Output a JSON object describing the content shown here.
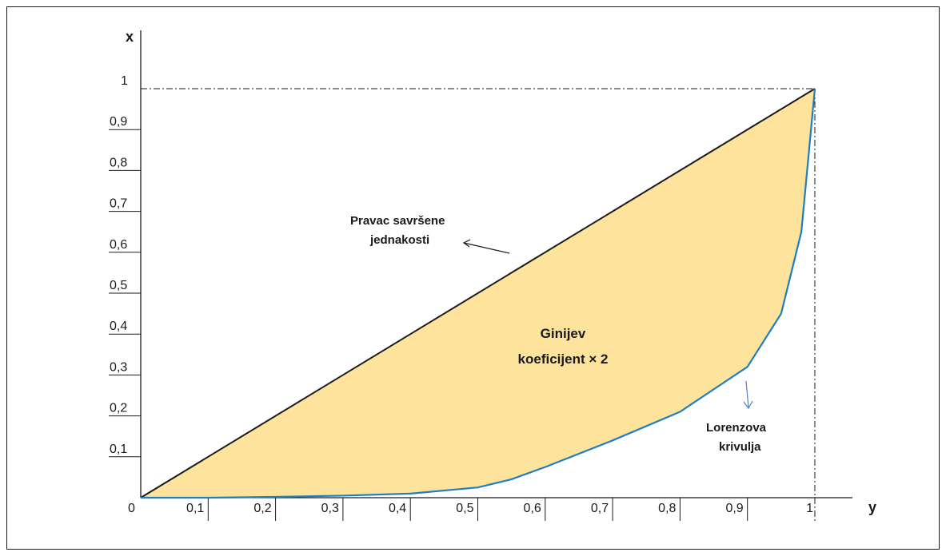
{
  "axes": {
    "x_axis_name": "y",
    "y_axis_name": "x",
    "origin_label": "0",
    "x_ticks": [
      "0,1",
      "0,2",
      "0,3",
      "0,4",
      "0,5",
      "0,6",
      "0,7",
      "0,8",
      "0,9",
      "1"
    ],
    "y_ticks": [
      "0,1",
      "0,2",
      "0,3",
      "0,4",
      "0,5",
      "0,6",
      "0,7",
      "0,8",
      "0,9",
      "1"
    ]
  },
  "annotations": {
    "equality_line_line1": "Pravac savršene",
    "equality_line_line2": "jednakosti",
    "gini_line1": "Ginijev",
    "gini_line2": "koeficijent × 2",
    "lorenz_line1": "Lorenzova",
    "lorenz_line2": "krivulja"
  },
  "colors": {
    "fill": "#fde39c",
    "equality_line": "#1a1a1a",
    "lorenz_curve": "#1f7ec4",
    "axis": "#1a1a1a"
  },
  "chart_data": {
    "type": "line",
    "xlim": [
      0,
      1
    ],
    "ylim": [
      0,
      1
    ],
    "series": [
      {
        "x": [
          0,
          1
        ],
        "y": [
          0,
          1
        ]
      },
      {
        "x": [
          0,
          0.1,
          0.2,
          0.3,
          0.4,
          0.5,
          0.55,
          0.6,
          0.7,
          0.8,
          0.9,
          0.95,
          0.98,
          1
        ],
        "y": [
          0,
          0,
          0.002,
          0.005,
          0.01,
          0.025,
          0.045,
          0.075,
          0.14,
          0.21,
          0.32,
          0.45,
          0.65,
          1
        ]
      }
    ],
    "fill_between_series": true
  }
}
